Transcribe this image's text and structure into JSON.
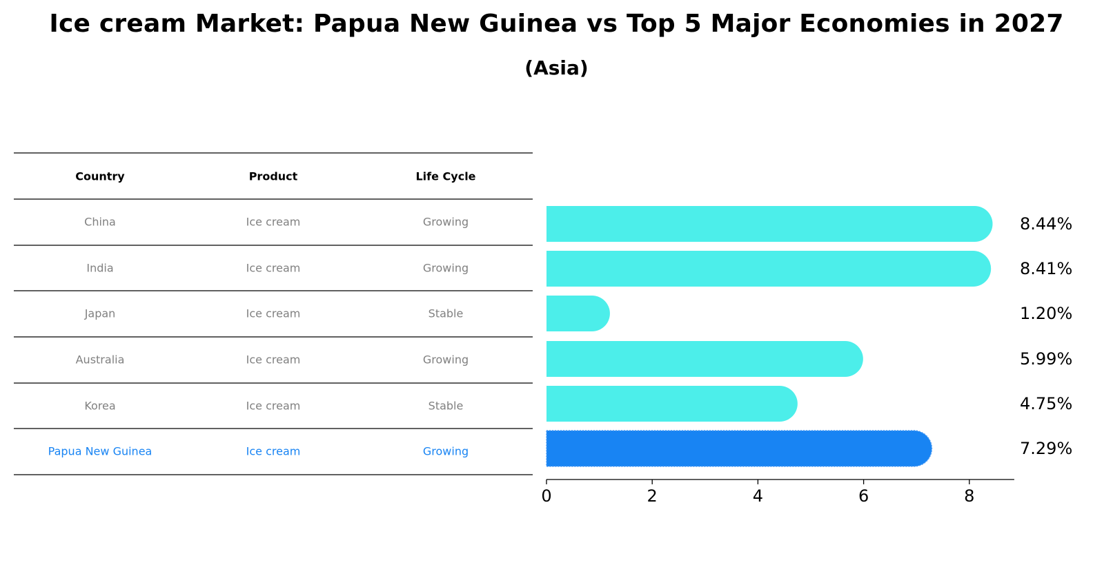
{
  "title": "Ice cream Market: Papua New Guinea vs Top 5 Major Economies in 2027",
  "subtitle": "(Asia)",
  "table": {
    "headers": [
      "Country",
      "Product",
      "Life Cycle"
    ],
    "rows": [
      [
        "China",
        "Ice cream",
        "Growing"
      ],
      [
        "India",
        "Ice cream",
        "Growing"
      ],
      [
        "Japan",
        "Ice cream",
        "Stable"
      ],
      [
        "Australia",
        "Ice cream",
        "Growing"
      ],
      [
        "Korea",
        "Ice cream",
        "Stable"
      ],
      [
        "Papua New Guinea",
        "Ice cream",
        "Growing"
      ]
    ],
    "highlight_row": 5
  },
  "chart_data": {
    "type": "bar",
    "orientation": "horizontal",
    "categories": [
      "China",
      "India",
      "Japan",
      "Australia",
      "Korea",
      "Papua New Guinea"
    ],
    "values": [
      8.44,
      8.41,
      1.2,
      5.99,
      4.75,
      7.29
    ],
    "value_labels": [
      "8.44%",
      "8.41%",
      "1.20%",
      "5.99%",
      "4.75%",
      "7.29%"
    ],
    "xticks": [
      0,
      2,
      4,
      6,
      8
    ],
    "xlim": [
      0,
      8.85
    ],
    "grid": false,
    "colors": {
      "bar": "#4CEEEA",
      "highlight": "#1884F3",
      "muted_text": "#808080",
      "highlight_text": "#1884F3"
    },
    "highlight_index": 5
  }
}
